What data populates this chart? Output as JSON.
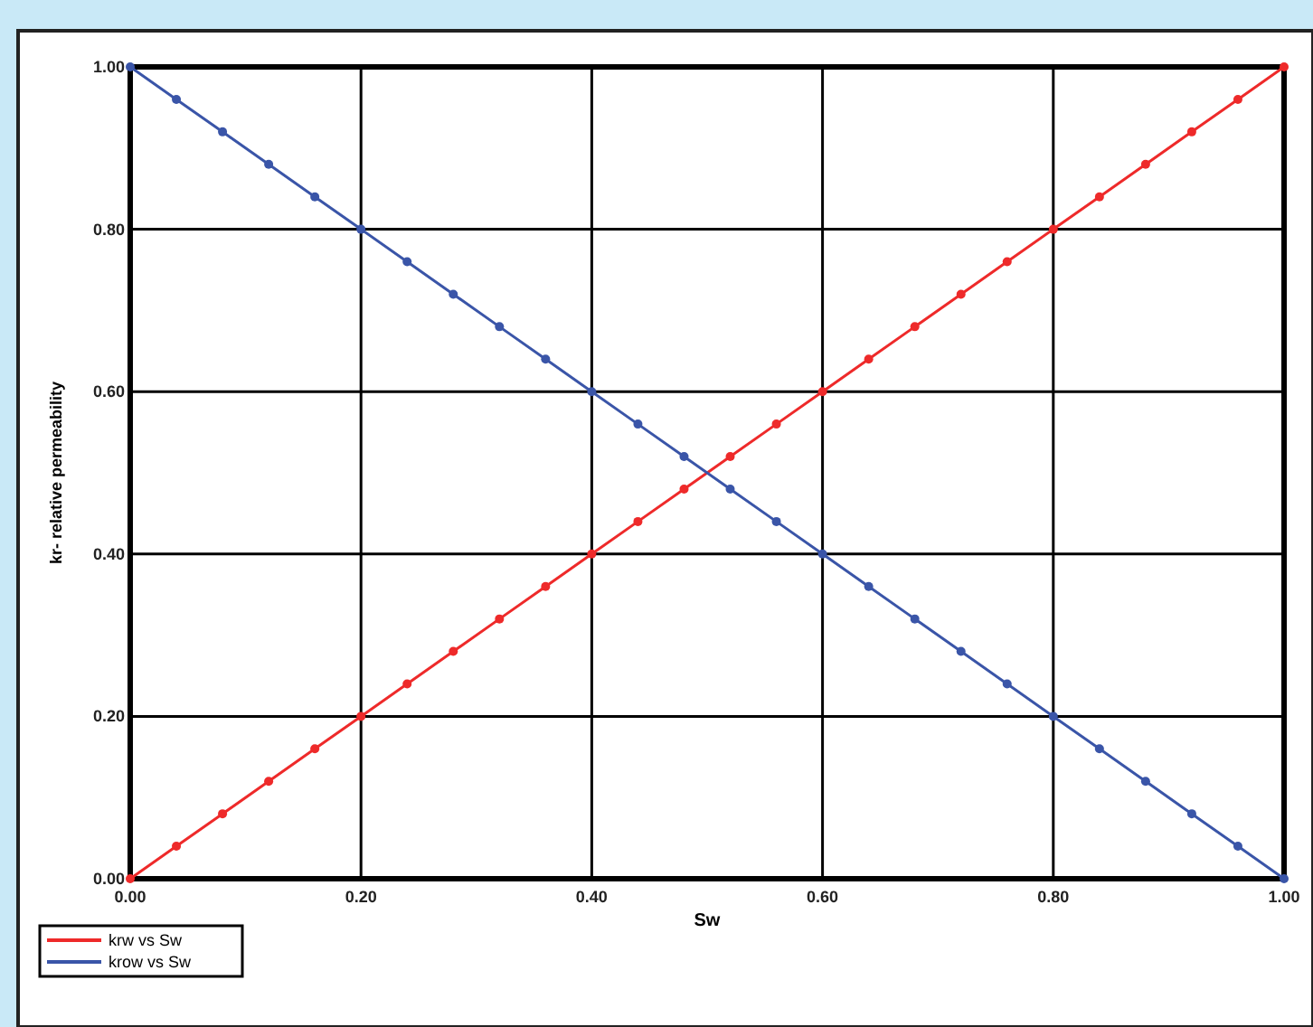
{
  "chart_data": {
    "type": "line",
    "xlabel": "Sw",
    "ylabel": "kr- relative permeability",
    "x": [
      0,
      0.04,
      0.08,
      0.12,
      0.16,
      0.2,
      0.24,
      0.28,
      0.32,
      0.36,
      0.4,
      0.44,
      0.48,
      0.52,
      0.56,
      0.6,
      0.64,
      0.68,
      0.72,
      0.76,
      0.8,
      0.84,
      0.88,
      0.92,
      0.96,
      1
    ],
    "series": [
      {
        "name": "krw vs Sw",
        "color": "#ee2a2a",
        "values": [
          0,
          0.04,
          0.08,
          0.12,
          0.16,
          0.2,
          0.24,
          0.28,
          0.32,
          0.36,
          0.4,
          0.44,
          0.48,
          0.52,
          0.56,
          0.6,
          0.64,
          0.68,
          0.72,
          0.76,
          0.8,
          0.84,
          0.88,
          0.92,
          0.96,
          1
        ]
      },
      {
        "name": "krow vs Sw",
        "color": "#3a55a8",
        "values": [
          1,
          0.96,
          0.92,
          0.88,
          0.84,
          0.8,
          0.76,
          0.72,
          0.68,
          0.64,
          0.6,
          0.56,
          0.52,
          0.48,
          0.44,
          0.4,
          0.36,
          0.32,
          0.28,
          0.24,
          0.2,
          0.16,
          0.12,
          0.08,
          0.04,
          0
        ]
      }
    ],
    "xlim": [
      0,
      1
    ],
    "ylim": [
      0,
      1
    ],
    "xticks": [
      {
        "value": 0,
        "label": "0.00"
      },
      {
        "value": 0.2,
        "label": "0.20"
      },
      {
        "value": 0.4,
        "label": "0.40"
      },
      {
        "value": 0.6,
        "label": "0.60"
      },
      {
        "value": 0.8,
        "label": "0.80"
      },
      {
        "value": 1,
        "label": "1.00"
      }
    ],
    "yticks": [
      {
        "value": 0,
        "label": "0.00"
      },
      {
        "value": 0.2,
        "label": "0.20"
      },
      {
        "value": 0.4,
        "label": "0.40"
      },
      {
        "value": 0.6,
        "label": "0.60"
      },
      {
        "value": 0.8,
        "label": "0.80"
      },
      {
        "value": 1,
        "label": "1.00"
      }
    ],
    "grid": true,
    "legend": "bottom left",
    "marker": "circle",
    "line_style": "solid"
  }
}
